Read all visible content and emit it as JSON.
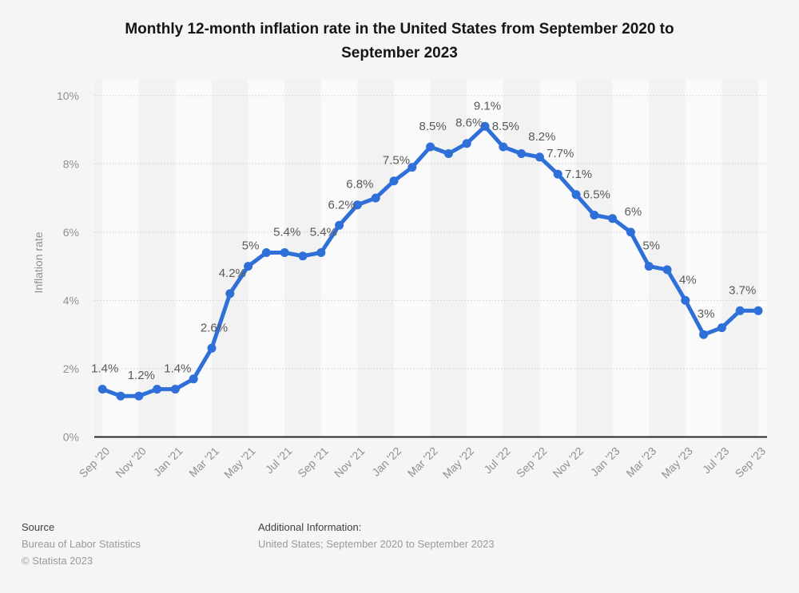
{
  "chart_data": {
    "type": "line",
    "title": "Monthly 12-month inflation rate in the United States from September 2020 to September 2023",
    "ylabel": "Inflation rate",
    "ylim": [
      0,
      10
    ],
    "y_tick_step": 2,
    "y_tick_suffix": "%",
    "grid": "dotted-horizontal",
    "background_bands": true,
    "legend_position": "none",
    "line_color": "#2f70d8",
    "data_label_color": "#58595a",
    "axis_label_color": "#8f9090",
    "x_tick_every": 2,
    "x": [
      "Sep '20",
      "Oct '20",
      "Nov '20",
      "Dec '20",
      "Jan '21",
      "Feb '21",
      "Mar '21",
      "Apr '21",
      "May '21",
      "Jun '21",
      "Jul '21",
      "Aug '21",
      "Sep '21",
      "Oct '21",
      "Nov '21",
      "Dec '21",
      "Jan '22",
      "Feb '22",
      "Mar '22",
      "Apr '22",
      "May '22",
      "Jun '22",
      "Jul '22",
      "Aug '22",
      "Sep '22",
      "Oct '22",
      "Nov '22",
      "Dec '22",
      "Jan '23",
      "Feb '23",
      "Mar '23",
      "Apr '23",
      "May '23",
      "Jun '23",
      "Jul '23",
      "Aug '23",
      "Sep '23"
    ],
    "values": [
      1.4,
      1.2,
      1.2,
      1.4,
      1.4,
      1.7,
      2.6,
      4.2,
      5,
      5.4,
      5.4,
      5.3,
      5.4,
      6.2,
      6.8,
      7,
      7.5,
      7.9,
      8.5,
      8.3,
      8.6,
      9.1,
      8.5,
      8.3,
      8.2,
      7.7,
      7.1,
      6.5,
      6.4,
      6,
      5,
      4.9,
      4,
      3,
      3.2,
      3.7,
      3.7
    ],
    "point_labels": [
      "1.4%",
      "",
      "1.2%",
      "",
      "1.4%",
      "",
      "2.6%",
      "4.2%",
      "5%",
      "",
      "5.4%",
      "",
      "5.4%",
      "6.2%",
      "6.8%",
      "",
      "7.5%",
      "",
      "8.5%",
      "",
      "8.6%",
      "9.1%",
      "8.5%",
      "",
      "8.2%",
      "7.7%",
      "7.1%",
      "6.5%",
      "",
      "6%",
      "5%",
      "",
      "4%",
      "3%",
      "",
      "3.7%",
      ""
    ]
  },
  "footer": {
    "source_heading": "Source",
    "source_lines": [
      "Bureau of Labor Statistics",
      "© Statista 2023"
    ],
    "additional_heading": "Additional Information:",
    "additional_lines": [
      "United States; September 2020 to September 2023"
    ]
  }
}
